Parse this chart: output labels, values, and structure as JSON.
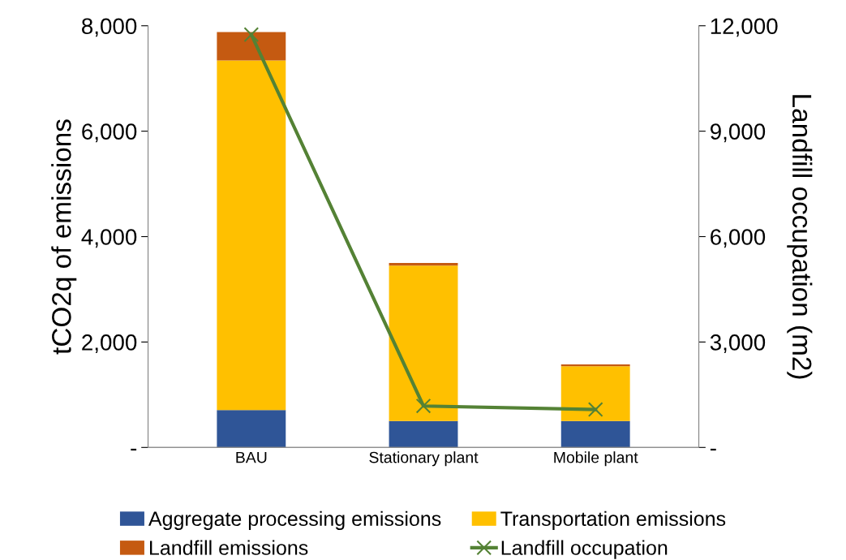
{
  "chart_data": {
    "type": "bar",
    "stacked": true,
    "categories": [
      "BAU",
      "Stationary plant",
      "Mobile plant"
    ],
    "ylabel": "tCO2q of emissions",
    "y2label": "Landfill occupation (m2)",
    "ylim": [
      0,
      8000
    ],
    "yticks": [
      {
        "value": 0,
        "label": "-"
      },
      {
        "value": 2000,
        "label": "2,000"
      },
      {
        "value": 4000,
        "label": "4,000"
      },
      {
        "value": 6000,
        "label": "6,000"
      },
      {
        "value": 8000,
        "label": "8,000"
      }
    ],
    "y2lim": [
      0,
      12000
    ],
    "y2ticks": [
      {
        "value": 0,
        "label": "-"
      },
      {
        "value": 3000,
        "label": "3,000"
      },
      {
        "value": 6000,
        "label": "6,000"
      },
      {
        "value": 9000,
        "label": "9,000"
      },
      {
        "value": 12000,
        "label": "12,000"
      }
    ],
    "grid": false,
    "legend": "bottom",
    "series": [
      {
        "name": "Aggregate processing emissions",
        "color": "#2f5597",
        "values": [
          710,
          500,
          500
        ]
      },
      {
        "name": "Transportation emissions",
        "color": "#ffc000",
        "values": [
          6630,
          2950,
          1040
        ]
      },
      {
        "name": "Landfill emissions",
        "color": "#c55a11",
        "values": [
          540,
          50,
          35
        ]
      },
      {
        "name": "Landfill occupation",
        "color": "#548235",
        "type": "line",
        "axis": "y2",
        "marker": "cross",
        "values": [
          11750,
          1180,
          1080
        ]
      }
    ]
  }
}
